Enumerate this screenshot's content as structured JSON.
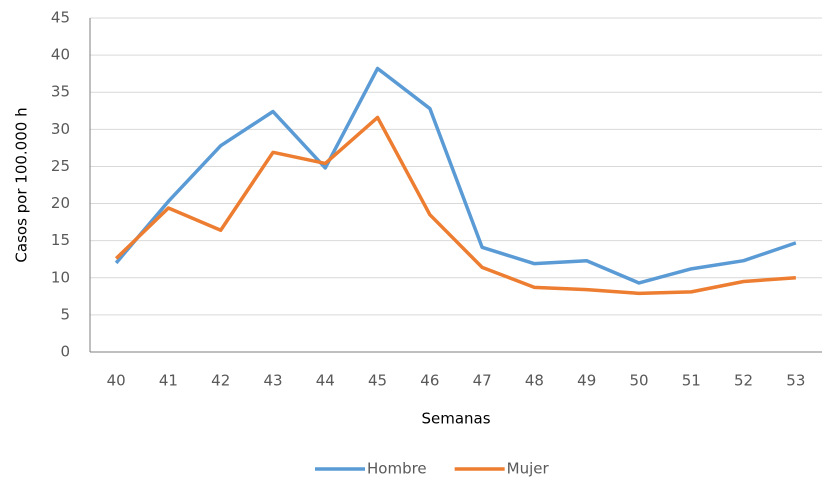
{
  "chart_data": {
    "type": "line",
    "y_label": "Casos por 100.000 h",
    "x_label": "Semanas",
    "categories": [
      "40",
      "41",
      "42",
      "43",
      "44",
      "45",
      "46",
      "47",
      "48",
      "49",
      "50",
      "51",
      "52",
      "53"
    ],
    "series": [
      {
        "name": "Hombre",
        "color": "#5b9bd5",
        "values": [
          12,
          20.3,
          27.8,
          32.4,
          24.8,
          38.2,
          32.8,
          14.1,
          11.9,
          12.3,
          9.3,
          11.2,
          12.3,
          14.7
        ]
      },
      {
        "name": "Mujer",
        "color": "#ed7d31",
        "values": [
          12.6,
          19.4,
          16.4,
          26.9,
          25.4,
          31.6,
          18.5,
          11.4,
          8.7,
          8.4,
          7.9,
          8.1,
          9.5,
          10
        ]
      }
    ],
    "ylim": [
      0,
      45
    ],
    "yticks": [
      0,
      5,
      10,
      15,
      20,
      25,
      30,
      35,
      40,
      45
    ],
    "grid": true,
    "legend": "bottom"
  }
}
